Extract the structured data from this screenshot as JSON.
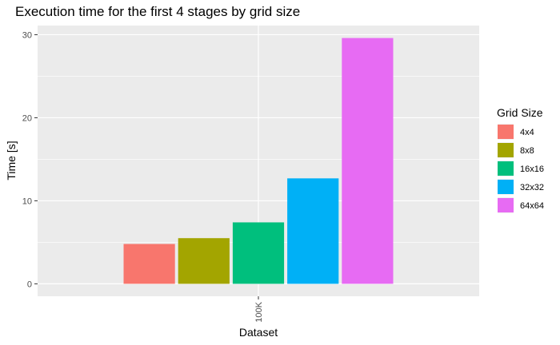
{
  "chart_data": {
    "type": "bar",
    "title": "Execution time for the first 4 stages by grid size",
    "xlabel": "Dataset",
    "ylabel": "Time [s]",
    "categories": [
      "100K"
    ],
    "series": [
      {
        "name": "4x4",
        "values": [
          4.8
        ],
        "color": "#F8766D"
      },
      {
        "name": "8x8",
        "values": [
          5.5
        ],
        "color": "#A3A500"
      },
      {
        "name": "16x16",
        "values": [
          7.4
        ],
        "color": "#00BF7D"
      },
      {
        "name": "32x32",
        "values": [
          12.7
        ],
        "color": "#00B0F6"
      },
      {
        "name": "64x64",
        "values": [
          29.6
        ],
        "color": "#E76BF3"
      }
    ],
    "yticks": [
      0,
      10,
      20,
      30
    ],
    "ylim": [
      -1.5,
      31.1
    ],
    "grid": true,
    "legend": {
      "title": "Grid Size",
      "position": "right"
    }
  }
}
